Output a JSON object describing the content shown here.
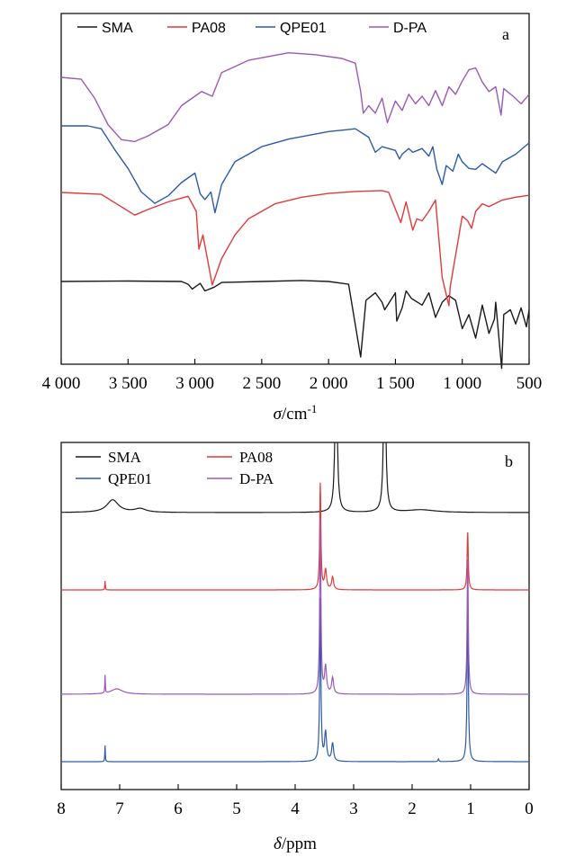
{
  "chart_data": [
    {
      "panel": "a",
      "type": "line",
      "xlabel_symbol": "σ",
      "xlabel_unit": "/cm",
      "xlabel_sup": "-1",
      "xlim": [
        4000,
        500
      ],
      "x_ticks": [
        4000,
        3500,
        3000,
        2500,
        2000,
        1500,
        1000,
        500
      ],
      "x_tick_labels": [
        "4 000",
        "3 500",
        "3 000",
        "2 500",
        "2 000",
        "1 500",
        "1 000",
        "500"
      ],
      "y_axis": "offset traces, no y scale",
      "legend_position": "top",
      "series": [
        {
          "name": "SMA",
          "color": "#1a1a1a",
          "offset": 0,
          "points": [
            [
              4000,
              0
            ],
            [
              3500,
              0.5
            ],
            [
              3100,
              0
            ],
            [
              3050,
              -3
            ],
            [
              3020,
              -8
            ],
            [
              2960,
              -2
            ],
            [
              2925,
              -10
            ],
            [
              2855,
              -6
            ],
            [
              2800,
              -1
            ],
            [
              2500,
              0
            ],
            [
              2200,
              1
            ],
            [
              2000,
              0
            ],
            [
              1850,
              -3
            ],
            [
              1760,
              -80
            ],
            [
              1720,
              -20
            ],
            [
              1650,
              -12
            ],
            [
              1600,
              -22
            ],
            [
              1580,
              -30
            ],
            [
              1500,
              -12
            ],
            [
              1490,
              -42
            ],
            [
              1450,
              -28
            ],
            [
              1420,
              -10
            ],
            [
              1380,
              -18
            ],
            [
              1300,
              -25
            ],
            [
              1250,
              -12
            ],
            [
              1200,
              -38
            ],
            [
              1150,
              -22
            ],
            [
              1100,
              -15
            ],
            [
              1050,
              -20
            ],
            [
              1000,
              -50
            ],
            [
              950,
              -35
            ],
            [
              900,
              -60
            ],
            [
              850,
              -25
            ],
            [
              800,
              -55
            ],
            [
              760,
              -40
            ],
            [
              750,
              -22
            ],
            [
              705,
              -92
            ],
            [
              690,
              -35
            ],
            [
              640,
              -30
            ],
            [
              600,
              -45
            ],
            [
              560,
              -28
            ],
            [
              520,
              -48
            ],
            [
              500,
              -30
            ]
          ]
        },
        {
          "name": "PA08",
          "color": "#e03a3a",
          "offset": 1,
          "points": [
            [
              4000,
              0
            ],
            [
              3700,
              -2
            ],
            [
              3450,
              -24
            ],
            [
              3350,
              -18
            ],
            [
              3200,
              -10
            ],
            [
              3050,
              -4
            ],
            [
              2990,
              -20
            ],
            [
              2970,
              -60
            ],
            [
              2940,
              -45
            ],
            [
              2900,
              -75
            ],
            [
              2870,
              -98
            ],
            [
              2800,
              -70
            ],
            [
              2700,
              -45
            ],
            [
              2600,
              -28
            ],
            [
              2400,
              -12
            ],
            [
              2200,
              -5
            ],
            [
              2000,
              -1
            ],
            [
              1800,
              1
            ],
            [
              1600,
              2
            ],
            [
              1550,
              0
            ],
            [
              1460,
              -32
            ],
            [
              1420,
              -10
            ],
            [
              1370,
              -40
            ],
            [
              1340,
              -28
            ],
            [
              1300,
              -30
            ],
            [
              1250,
              -20
            ],
            [
              1200,
              -8
            ],
            [
              1150,
              -90
            ],
            [
              1100,
              -120
            ],
            [
              1090,
              -100
            ],
            [
              1000,
              -25
            ],
            [
              960,
              -30
            ],
            [
              930,
              -38
            ],
            [
              900,
              -20
            ],
            [
              850,
              -12
            ],
            [
              800,
              -15
            ],
            [
              700,
              -8
            ],
            [
              600,
              -5
            ],
            [
              500,
              -3
            ]
          ]
        },
        {
          "name": "QPE01",
          "color": "#2c5aa8",
          "offset": 2,
          "points": [
            [
              4000,
              0
            ],
            [
              3800,
              0
            ],
            [
              3700,
              -3
            ],
            [
              3600,
              -25
            ],
            [
              3500,
              -45
            ],
            [
              3400,
              -70
            ],
            [
              3300,
              -82
            ],
            [
              3200,
              -74
            ],
            [
              3100,
              -60
            ],
            [
              3000,
              -50
            ],
            [
              2960,
              -72
            ],
            [
              2925,
              -78
            ],
            [
              2880,
              -70
            ],
            [
              2850,
              -92
            ],
            [
              2800,
              -62
            ],
            [
              2700,
              -38
            ],
            [
              2500,
              -22
            ],
            [
              2300,
              -14
            ],
            [
              2000,
              -6
            ],
            [
              1800,
              -3
            ],
            [
              1700,
              -12
            ],
            [
              1650,
              -28
            ],
            [
              1600,
              -22
            ],
            [
              1500,
              -26
            ],
            [
              1470,
              -35
            ],
            [
              1450,
              -30
            ],
            [
              1400,
              -24
            ],
            [
              1370,
              -28
            ],
            [
              1300,
              -24
            ],
            [
              1250,
              -32
            ],
            [
              1220,
              -22
            ],
            [
              1190,
              -46
            ],
            [
              1150,
              -62
            ],
            [
              1120,
              -42
            ],
            [
              1070,
              -48
            ],
            [
              1030,
              -30
            ],
            [
              1000,
              -38
            ],
            [
              950,
              -45
            ],
            [
              900,
              -46
            ],
            [
              850,
              -40
            ],
            [
              800,
              -45
            ],
            [
              750,
              -50
            ],
            [
              700,
              -38
            ],
            [
              600,
              -30
            ],
            [
              500,
              -18
            ]
          ]
        },
        {
          "name": "D-PA",
          "color": "#9b59b6",
          "offset": 3,
          "points": [
            [
              4000,
              0
            ],
            [
              3850,
              -2
            ],
            [
              3750,
              -22
            ],
            [
              3650,
              -50
            ],
            [
              3550,
              -66
            ],
            [
              3450,
              -68
            ],
            [
              3350,
              -62
            ],
            [
              3200,
              -50
            ],
            [
              3100,
              -30
            ],
            [
              3000,
              -20
            ],
            [
              2950,
              -15
            ],
            [
              2870,
              -20
            ],
            [
              2800,
              5
            ],
            [
              2600,
              18
            ],
            [
              2300,
              26
            ],
            [
              2100,
              24
            ],
            [
              1900,
              20
            ],
            [
              1800,
              15
            ],
            [
              1760,
              -15
            ],
            [
              1740,
              -38
            ],
            [
              1700,
              -30
            ],
            [
              1650,
              -38
            ],
            [
              1600,
              -22
            ],
            [
              1560,
              -48
            ],
            [
              1500,
              -25
            ],
            [
              1450,
              -35
            ],
            [
              1400,
              -18
            ],
            [
              1350,
              -28
            ],
            [
              1300,
              -20
            ],
            [
              1250,
              -30
            ],
            [
              1200,
              -14
            ],
            [
              1150,
              -30
            ],
            [
              1100,
              -10
            ],
            [
              1050,
              -18
            ],
            [
              1000,
              -4
            ],
            [
              950,
              8
            ],
            [
              900,
              10
            ],
            [
              850,
              -5
            ],
            [
              800,
              -15
            ],
            [
              750,
              -10
            ],
            [
              710,
              -40
            ],
            [
              690,
              -12
            ],
            [
              620,
              -20
            ],
            [
              560,
              -28
            ],
            [
              500,
              -18
            ]
          ]
        }
      ]
    },
    {
      "panel": "b",
      "type": "line",
      "xlabel_symbol": "δ",
      "xlabel_unit": "/ppm",
      "xlim": [
        8,
        0
      ],
      "x_ticks": [
        8,
        7,
        6,
        5,
        4,
        3,
        2,
        1,
        0
      ],
      "x_tick_labels": [
        "8",
        "7",
        "6",
        "5",
        "4",
        "3",
        "2",
        "1",
        "0"
      ],
      "y_axis": "offset traces, no y scale",
      "legend_position": "top",
      "series": [
        {
          "name": "SMA",
          "color": "#1a1a1a",
          "offset": 3,
          "peaks": [
            [
              7.12,
              14,
              0.12
            ],
            [
              6.65,
              4,
              0.12
            ],
            [
              3.3,
              200,
              0.02
            ],
            [
              2.47,
              200,
              0.02
            ],
            [
              1.85,
              3,
              0.3
            ]
          ]
        },
        {
          "name": "PA08",
          "color": "#e03a3a",
          "offset": 2,
          "peaks": [
            [
              7.25,
              10,
              0.005
            ],
            [
              3.57,
              118,
              0.012
            ],
            [
              3.48,
              22,
              0.02
            ],
            [
              3.36,
              14,
              0.02
            ],
            [
              1.05,
              64,
              0.012
            ]
          ]
        },
        {
          "name": "QPE01",
          "color": "#2c5aa8",
          "offset": 0,
          "peaks": [
            [
              7.25,
              18,
              0.005
            ],
            [
              3.57,
              180,
              0.012
            ],
            [
              3.48,
              32,
              0.02
            ],
            [
              3.36,
              20,
              0.02
            ],
            [
              1.55,
              3,
              0.01
            ],
            [
              1.05,
              190,
              0.012
            ]
          ]
        },
        {
          "name": "D-PA",
          "color": "#9b59b6",
          "offset": 1,
          "peaks": [
            [
              7.25,
              20,
              0.005
            ],
            [
              7.05,
              6,
              0.12
            ],
            [
              3.57,
              195,
              0.012
            ],
            [
              3.48,
              30,
              0.02
            ],
            [
              3.36,
              18,
              0.02
            ],
            [
              1.05,
              150,
              0.012
            ]
          ]
        }
      ]
    }
  ]
}
